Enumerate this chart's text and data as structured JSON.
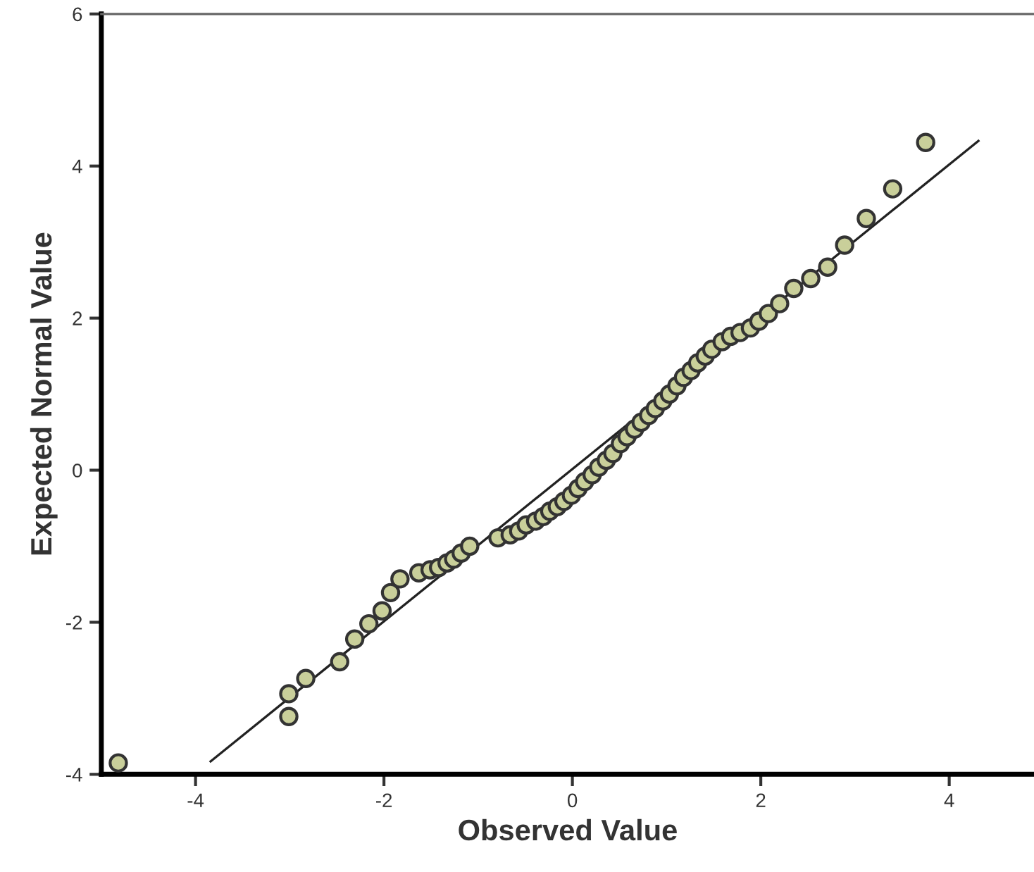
{
  "chart_data": {
    "type": "scatter",
    "xlabel": "Observed Value",
    "ylabel": "Expected Normal Value",
    "xlim": [
      -5,
      4.9
    ],
    "ylim": [
      -4,
      6
    ],
    "xticks": [
      -4,
      -2,
      0,
      2,
      4
    ],
    "yticks": [
      -4,
      -2,
      0,
      2,
      4,
      6
    ],
    "grid": false,
    "legend": false,
    "marker": "circle",
    "series": [
      {
        "type": "scatter",
        "color": "#c9cf9a",
        "x": [
          -4.82,
          -3.01,
          -3.01,
          -2.83,
          -2.47,
          -2.31,
          -2.16,
          -2.02,
          -1.93,
          -1.83,
          -1.63,
          -1.51,
          -1.42,
          -1.33,
          -1.26,
          -1.18,
          -1.09,
          -0.79,
          -0.66,
          -0.57,
          -0.49,
          -0.39,
          -0.31,
          -0.24,
          -0.16,
          -0.09,
          -0.01,
          0.06,
          0.13,
          0.21,
          0.28,
          0.36,
          0.43,
          0.51,
          0.58,
          0.66,
          0.73,
          0.81,
          0.88,
          0.96,
          1.03,
          1.11,
          1.18,
          1.26,
          1.33,
          1.41,
          1.48,
          1.59,
          1.68,
          1.78,
          1.89,
          1.98,
          2.08,
          2.2,
          2.35,
          2.53,
          2.71,
          2.89,
          3.12,
          3.4,
          3.75
        ],
        "values": [
          -3.85,
          -3.24,
          -2.94,
          -2.74,
          -2.52,
          -2.22,
          -2.02,
          -1.85,
          -1.61,
          -1.43,
          -1.35,
          -1.31,
          -1.28,
          -1.22,
          -1.17,
          -1.09,
          -1.0,
          -0.89,
          -0.85,
          -0.8,
          -0.72,
          -0.67,
          -0.61,
          -0.54,
          -0.48,
          -0.41,
          -0.33,
          -0.24,
          -0.15,
          -0.06,
          0.04,
          0.13,
          0.22,
          0.35,
          0.44,
          0.54,
          0.63,
          0.72,
          0.81,
          0.91,
          1.0,
          1.11,
          1.22,
          1.31,
          1.41,
          1.5,
          1.59,
          1.69,
          1.76,
          1.81,
          1.87,
          1.96,
          2.06,
          2.19,
          2.39,
          2.52,
          2.67,
          2.96,
          3.31,
          3.7,
          4.31
        ]
      },
      {
        "type": "line",
        "marker": "none",
        "color": "#222222",
        "x": [
          -3.84,
          4.31
        ],
        "values": [
          -3.83,
          4.33
        ]
      }
    ]
  }
}
